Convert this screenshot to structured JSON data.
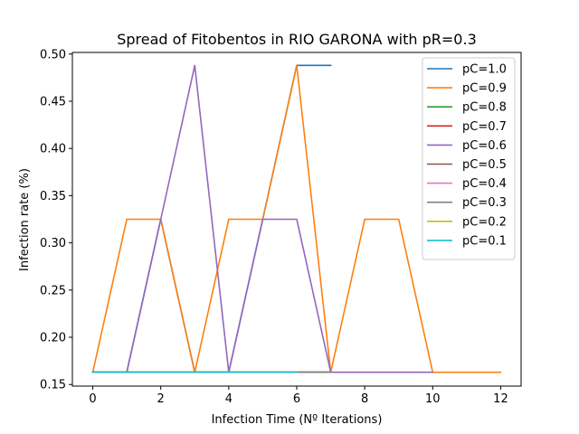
{
  "chart_data": {
    "type": "line",
    "title": "Spread of Fitobentos in RIO GARONA with pR=0.3",
    "xlabel": "Infection Time (Nº Iterations)",
    "ylabel": "Infection rate (%)",
    "xlim": [
      -0.6,
      12.6
    ],
    "ylim": [
      0.1483,
      0.5017
    ],
    "xticks": [
      0,
      2,
      4,
      6,
      8,
      10,
      12
    ],
    "xtick_labels": [
      "0",
      "2",
      "4",
      "6",
      "8",
      "10",
      "12"
    ],
    "yticks": [
      0.15,
      0.2,
      0.25,
      0.3,
      0.35,
      0.4,
      0.45,
      0.5
    ],
    "ytick_labels": [
      "0.15",
      "0.20",
      "0.25",
      "0.30",
      "0.35",
      "0.40",
      "0.45",
      "0.50"
    ],
    "grid": false,
    "legend_position": "upper right",
    "series": [
      {
        "name": "pC=1.0",
        "color": "#1f77b4",
        "x": [
          0,
          1,
          2,
          3,
          4,
          5,
          6,
          7
        ],
        "y": [
          0.163,
          0.163,
          0.325,
          0.163,
          0.163,
          0.325,
          0.488,
          0.488
        ]
      },
      {
        "name": "pC=0.9",
        "color": "#ff7f0e",
        "x": [
          0,
          1,
          2,
          3,
          4,
          5,
          6,
          7,
          8,
          9,
          10,
          11,
          12
        ],
        "y": [
          0.163,
          0.325,
          0.325,
          0.163,
          0.325,
          0.325,
          0.488,
          0.163,
          0.325,
          0.325,
          0.163,
          0.163,
          0.163
        ]
      },
      {
        "name": "pC=0.8",
        "color": "#2ca02c",
        "x": [
          0,
          1,
          2,
          3,
          4,
          5,
          6,
          7
        ],
        "y": [
          0.163,
          0.163,
          0.163,
          0.163,
          0.163,
          0.163,
          0.163,
          0.163
        ]
      },
      {
        "name": "pC=0.7",
        "color": "#d62728",
        "x": [
          0,
          1,
          2,
          3,
          4,
          5,
          6,
          7
        ],
        "y": [
          0.163,
          0.163,
          0.163,
          0.163,
          0.163,
          0.163,
          0.163,
          0.163
        ]
      },
      {
        "name": "pC=0.6",
        "color": "#9467bd",
        "x": [
          0,
          1,
          2,
          3,
          4,
          5,
          6,
          7,
          8,
          9,
          10
        ],
        "y": [
          0.163,
          0.163,
          0.325,
          0.488,
          0.163,
          0.325,
          0.325,
          0.163,
          0.163,
          0.163,
          0.163
        ]
      },
      {
        "name": "pC=0.5",
        "color": "#8c564b",
        "x": [
          0,
          1,
          2,
          3,
          4,
          5,
          6,
          7
        ],
        "y": [
          0.163,
          0.163,
          0.163,
          0.163,
          0.163,
          0.163,
          0.163,
          0.163
        ]
      },
      {
        "name": "pC=0.4",
        "color": "#e377c2",
        "x": [
          0,
          1,
          2,
          3,
          4,
          5,
          6,
          7
        ],
        "y": [
          0.163,
          0.163,
          0.163,
          0.163,
          0.163,
          0.163,
          0.163,
          0.163
        ]
      },
      {
        "name": "pC=0.3",
        "color": "#7f7f7f",
        "x": [
          0,
          1,
          2,
          3,
          4,
          5,
          6,
          7
        ],
        "y": [
          0.163,
          0.163,
          0.163,
          0.163,
          0.163,
          0.163,
          0.163,
          0.163
        ]
      },
      {
        "name": "pC=0.2",
        "color": "#bcbd22",
        "x": [
          0,
          1,
          2,
          3,
          4,
          5,
          6
        ],
        "y": [
          0.163,
          0.163,
          0.163,
          0.163,
          0.163,
          0.163,
          0.163
        ]
      },
      {
        "name": "pC=0.1",
        "color": "#17becf",
        "x": [
          0,
          1,
          2,
          3,
          4,
          5,
          6
        ],
        "y": [
          0.163,
          0.163,
          0.163,
          0.163,
          0.163,
          0.163,
          0.163
        ]
      }
    ]
  }
}
